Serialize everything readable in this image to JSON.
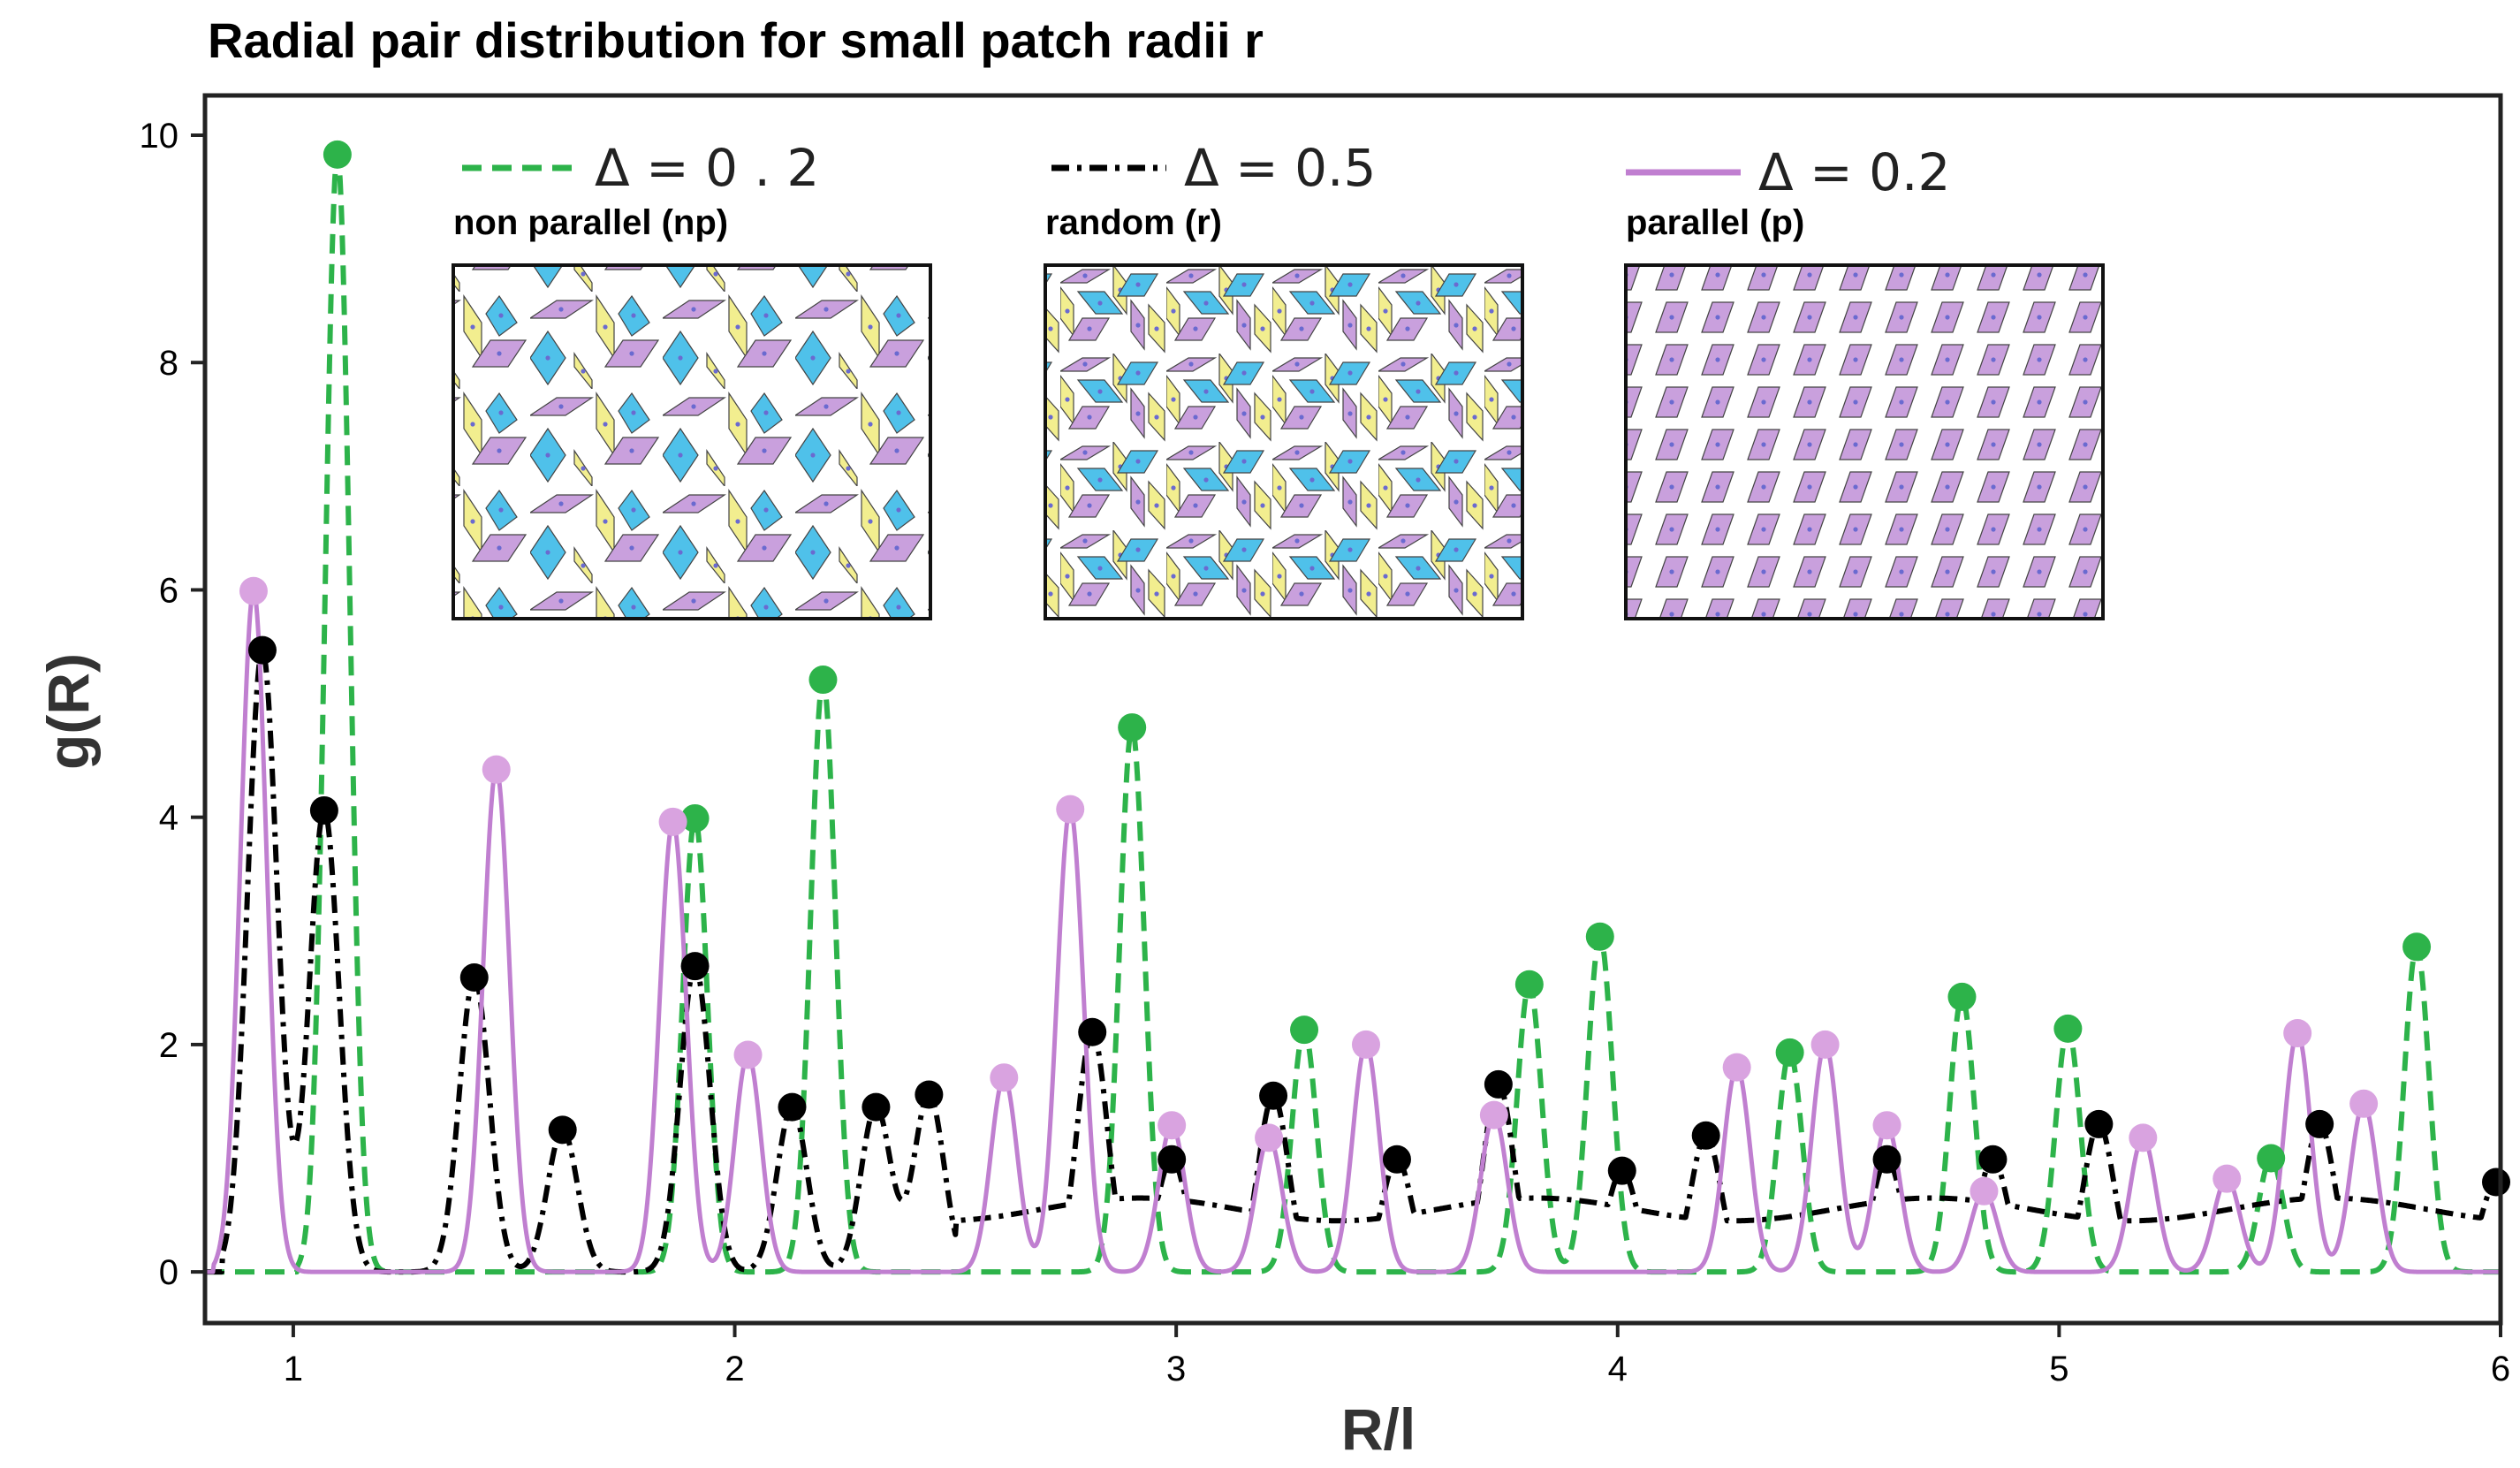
{
  "chart_data": {
    "type": "line",
    "title": "Radial pair distribution for small patch radii r",
    "xlabel": "R/l",
    "ylabel": "g(R)",
    "xlim": [
      0.8,
      6.0
    ],
    "ylim": [
      -0.45,
      10.35
    ],
    "xticks": [
      1,
      2,
      3,
      4,
      5,
      6
    ],
    "yticks": [
      0,
      2,
      4,
      6,
      8,
      10
    ],
    "colors": {
      "green": "#2db34a",
      "black": "#000000",
      "purple": "#c07fd0",
      "purple_marker": "#d9a3e0",
      "frame": "#222222"
    },
    "series": [
      {
        "name": "Δ = 0 . 2",
        "label": "non parallel (np)",
        "style": "dashed",
        "color": "#2db34a",
        "peaks": [
          {
            "x": 1.1,
            "y": 9.83
          },
          {
            "x": 1.91,
            "y": 3.99
          },
          {
            "x": 2.2,
            "y": 5.21
          },
          {
            "x": 2.9,
            "y": 4.79
          },
          {
            "x": 3.29,
            "y": 2.13
          },
          {
            "x": 3.8,
            "y": 2.53
          },
          {
            "x": 3.96,
            "y": 2.95
          },
          {
            "x": 4.39,
            "y": 1.93
          },
          {
            "x": 4.78,
            "y": 2.42
          },
          {
            "x": 5.02,
            "y": 2.14
          },
          {
            "x": 5.48,
            "y": 1.0
          },
          {
            "x": 5.81,
            "y": 2.86
          }
        ]
      },
      {
        "name": "Δ = 0.5",
        "label": "random (r)",
        "style": "dashdot",
        "color": "#000000",
        "peaks": [
          {
            "x": 0.93,
            "y": 5.47
          },
          {
            "x": 1.07,
            "y": 4.06
          },
          {
            "x": 1.41,
            "y": 2.59
          },
          {
            "x": 1.61,
            "y": 1.25
          },
          {
            "x": 1.91,
            "y": 2.69
          },
          {
            "x": 2.13,
            "y": 1.45
          },
          {
            "x": 2.32,
            "y": 1.45
          },
          {
            "x": 2.44,
            "y": 1.56
          },
          {
            "x": 2.81,
            "y": 2.11
          },
          {
            "x": 2.99,
            "y": 0.99
          },
          {
            "x": 3.22,
            "y": 1.55
          },
          {
            "x": 3.5,
            "y": 0.99
          },
          {
            "x": 3.73,
            "y": 1.65
          },
          {
            "x": 4.01,
            "y": 0.89
          },
          {
            "x": 4.2,
            "y": 1.2
          },
          {
            "x": 4.61,
            "y": 0.99
          },
          {
            "x": 4.85,
            "y": 0.99
          },
          {
            "x": 5.09,
            "y": 1.3
          },
          {
            "x": 5.59,
            "y": 1.3
          },
          {
            "x": 5.99,
            "y": 0.79
          }
        ]
      },
      {
        "name": "Δ = 0.2",
        "label": "parallel (p)",
        "style": "solid",
        "color": "#c07fd0",
        "peaks": [
          {
            "x": 0.91,
            "y": 5.99
          },
          {
            "x": 1.46,
            "y": 4.42
          },
          {
            "x": 1.86,
            "y": 3.96
          },
          {
            "x": 2.03,
            "y": 1.91
          },
          {
            "x": 2.61,
            "y": 1.71
          },
          {
            "x": 2.76,
            "y": 4.07
          },
          {
            "x": 2.99,
            "y": 1.29
          },
          {
            "x": 3.21,
            "y": 1.18
          },
          {
            "x": 3.43,
            "y": 2.0
          },
          {
            "x": 3.72,
            "y": 1.38
          },
          {
            "x": 4.27,
            "y": 1.8
          },
          {
            "x": 4.47,
            "y": 2.0
          },
          {
            "x": 4.61,
            "y": 1.29
          },
          {
            "x": 4.83,
            "y": 0.71
          },
          {
            "x": 5.19,
            "y": 1.18
          },
          {
            "x": 5.38,
            "y": 0.82
          },
          {
            "x": 5.54,
            "y": 2.1
          },
          {
            "x": 5.69,
            "y": 1.48
          }
        ]
      }
    ]
  }
}
